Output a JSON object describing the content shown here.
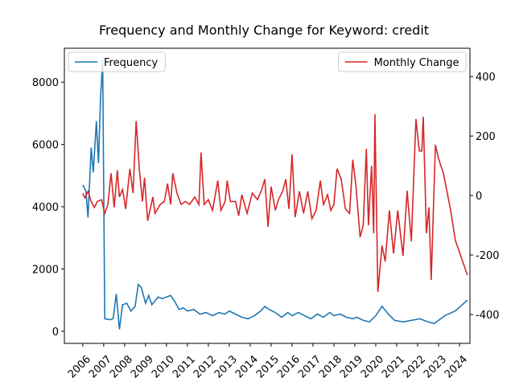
{
  "chart_data": {
    "type": "line",
    "title": "Frequency and Monthly Change for Keyword: credit",
    "xlim": [
      2005.12,
      2024.5
    ],
    "xticks": [
      2006,
      2007,
      2008,
      2009,
      2010,
      2011,
      2012,
      2013,
      2014,
      2015,
      2016,
      2017,
      2018,
      2019,
      2020,
      2021,
      2022,
      2023,
      2024
    ],
    "ylim": [
      -390,
      9090
    ],
    "yticks": [
      0,
      2000,
      4000,
      6000,
      8000
    ],
    "y2lim": [
      -497,
      495
    ],
    "y2ticks": [
      -400,
      -200,
      0,
      200,
      400
    ],
    "series": [
      {
        "name": "Frequency",
        "color": "#1f77b4",
        "axis": "y",
        "legend": "upper left",
        "x": [
          2006.0,
          2006.15,
          2006.25,
          2006.4,
          2006.5,
          2006.65,
          2006.75,
          2006.85,
          2006.95,
          2007.05,
          2007.3,
          2007.45,
          2007.6,
          2007.75,
          2007.9,
          2008.1,
          2008.3,
          2008.5,
          2008.65,
          2008.8,
          2009.0,
          2009.15,
          2009.3,
          2009.6,
          2009.8,
          2010.0,
          2010.2,
          2010.4,
          2010.6,
          2010.8,
          2011.0,
          2011.3,
          2011.6,
          2011.9,
          2012.2,
          2012.5,
          2012.8,
          2013.0,
          2013.3,
          2013.6,
          2013.9,
          2014.2,
          2014.5,
          2014.7,
          2014.9,
          2015.2,
          2015.5,
          2015.8,
          2016.0,
          2016.3,
          2016.6,
          2016.9,
          2017.2,
          2017.5,
          2017.8,
          2018.0,
          2018.3,
          2018.6,
          2018.9,
          2019.1,
          2019.4,
          2019.7,
          2020.0,
          2020.3,
          2020.6,
          2020.9,
          2021.3,
          2021.7,
          2022.1,
          2022.5,
          2022.8,
          2023.3,
          2023.8,
          2024.38
        ],
        "values": [
          4700,
          4500,
          3650,
          5900,
          5100,
          6750,
          5400,
          7500,
          8700,
          400,
          370,
          400,
          1200,
          60,
          850,
          900,
          650,
          800,
          1500,
          1400,
          900,
          1150,
          850,
          1100,
          1050,
          1100,
          1150,
          950,
          700,
          750,
          650,
          700,
          550,
          600,
          500,
          600,
          550,
          650,
          550,
          450,
          400,
          500,
          650,
          800,
          700,
          600,
          450,
          600,
          500,
          600,
          500,
          400,
          550,
          450,
          600,
          500,
          550,
          450,
          400,
          450,
          350,
          300,
          500,
          800,
          550,
          350,
          300,
          350,
          400,
          300,
          250,
          500,
          650,
          1000
        ]
      },
      {
        "name": "Monthly Change",
        "color": "#d62728",
        "axis": "y2",
        "legend": "upper right",
        "x": [
          2006.0,
          2006.1,
          2006.25,
          2006.4,
          2006.55,
          2006.7,
          2006.9,
          2007.05,
          2007.2,
          2007.35,
          2007.5,
          2007.65,
          2007.75,
          2007.9,
          2008.05,
          2008.25,
          2008.4,
          2008.55,
          2008.7,
          2008.85,
          2008.95,
          2009.1,
          2009.35,
          2009.45,
          2009.7,
          2009.9,
          2010.05,
          2010.2,
          2010.3,
          2010.5,
          2010.7,
          2010.9,
          2011.1,
          2011.35,
          2011.55,
          2011.65,
          2011.8,
          2012.0,
          2012.2,
          2012.45,
          2012.6,
          2012.8,
          2012.9,
          2013.05,
          2013.3,
          2013.45,
          2013.6,
          2013.85,
          2014.1,
          2014.35,
          2014.55,
          2014.7,
          2014.85,
          2015.0,
          2015.2,
          2015.35,
          2015.55,
          2015.7,
          2015.85,
          2016.0,
          2016.15,
          2016.35,
          2016.55,
          2016.75,
          2016.95,
          2017.15,
          2017.35,
          2017.5,
          2017.7,
          2017.85,
          2018.0,
          2018.15,
          2018.35,
          2018.55,
          2018.75,
          2018.9,
          2019.05,
          2019.25,
          2019.4,
          2019.55,
          2019.65,
          2019.8,
          2019.9,
          2019.96,
          2020.1,
          2020.3,
          2020.45,
          2020.65,
          2020.85,
          2021.05,
          2021.3,
          2021.5,
          2021.7,
          2021.92,
          2022.08,
          2022.2,
          2022.27,
          2022.42,
          2022.54,
          2022.65,
          2022.85,
          2023.0,
          2023.23,
          2023.58,
          2023.8,
          2024.38
        ],
        "values": [
          8,
          -8,
          14,
          -20,
          -40,
          -20,
          -14,
          -60,
          -30,
          75,
          -40,
          85,
          -5,
          20,
          -45,
          90,
          8,
          250,
          90,
          -20,
          60,
          -85,
          -5,
          -60,
          -30,
          -20,
          40,
          -30,
          75,
          8,
          -30,
          -20,
          -30,
          -5,
          -30,
          145,
          -30,
          -14,
          -50,
          50,
          -50,
          -20,
          50,
          -20,
          -20,
          -68,
          3,
          -60,
          8,
          -14,
          20,
          55,
          -105,
          30,
          -50,
          -14,
          14,
          55,
          -45,
          138,
          -73,
          14,
          -60,
          14,
          -78,
          -50,
          50,
          -30,
          3,
          -50,
          -30,
          90,
          55,
          -45,
          -60,
          120,
          35,
          -140,
          -100,
          157,
          -100,
          100,
          -127,
          273,
          -324,
          -168,
          -222,
          -50,
          -195,
          -50,
          -203,
          16,
          -154,
          257,
          150,
          150,
          265,
          -127,
          -40,
          -284,
          170,
          124,
          75,
          -50,
          -150,
          -268
        ]
      }
    ]
  }
}
